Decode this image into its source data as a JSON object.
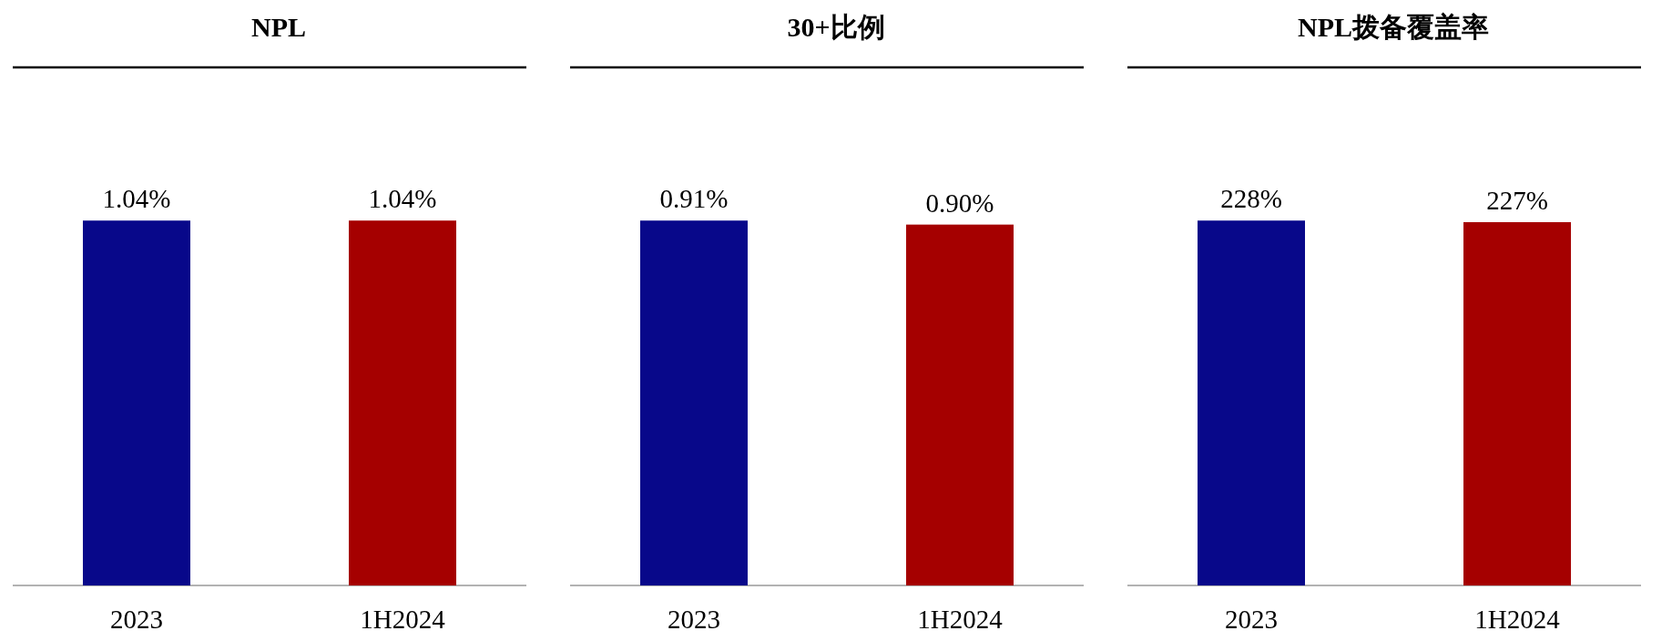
{
  "chart_data": [
    {
      "type": "bar",
      "title": "NPL",
      "categories": [
        "2023",
        "1H2024"
      ],
      "values": [
        1.04,
        1.04
      ],
      "colors": [
        "#08088a",
        "#a50000"
      ],
      "value_labels": [
        "1.04%",
        "1.04%"
      ]
    },
    {
      "type": "bar",
      "title": "30+比例",
      "categories": [
        "2023",
        "1H2024"
      ],
      "values": [
        0.91,
        0.9
      ],
      "colors": [
        "#08088a",
        "#a50000"
      ],
      "value_labels": [
        "0.91%",
        "0.90%"
      ]
    },
    {
      "type": "bar",
      "title": "NPL拨备覆盖率",
      "categories": [
        "2023",
        "1H2024"
      ],
      "values": [
        228,
        227
      ],
      "colors": [
        "#08088a",
        "#a50000"
      ],
      "value_labels": [
        "228%",
        "227%"
      ]
    }
  ]
}
